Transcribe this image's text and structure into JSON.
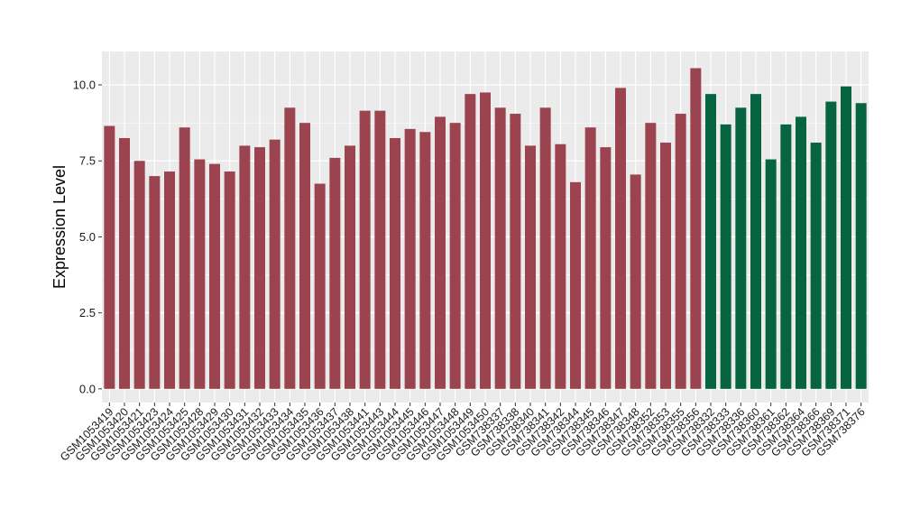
{
  "chart_data": {
    "type": "bar",
    "title": "",
    "xlabel": "",
    "ylabel": "Expression Level",
    "ylim": [
      -0.45,
      11.1
    ],
    "yticks": [
      0.0,
      2.5,
      5.0,
      7.5,
      10.0
    ],
    "ytick_labels": [
      "0.0",
      "2.5",
      "5.0",
      "7.5",
      "10.0"
    ],
    "grid": true,
    "legend": "none",
    "colors": {
      "group1": "#9b4450",
      "group2": "#076441",
      "panel_bg": "#ebebeb",
      "grid": "#ffffff"
    },
    "categories": [
      "GSM1053419",
      "GSM1053420",
      "GSM1053421",
      "GSM1053423",
      "GSM1053424",
      "GSM1053425",
      "GSM1053428",
      "GSM1053429",
      "GSM1053430",
      "GSM1053431",
      "GSM1053432",
      "GSM1053433",
      "GSM1053434",
      "GSM1053435",
      "GSM1053436",
      "GSM1053437",
      "GSM1053438",
      "GSM1053441",
      "GSM1053443",
      "GSM1053444",
      "GSM1053445",
      "GSM1053446",
      "GSM1053447",
      "GSM1053448",
      "GSM1053449",
      "GSM1053450",
      "GSM738337",
      "GSM738338",
      "GSM738340",
      "GSM738341",
      "GSM738342",
      "GSM738344",
      "GSM738345",
      "GSM738346",
      "GSM738347",
      "GSM738348",
      "GSM738352",
      "GSM738353",
      "GSM738355",
      "GSM738356",
      "GSM738332",
      "GSM738333",
      "GSM738336",
      "GSM738360",
      "GSM738361",
      "GSM738362",
      "GSM738364",
      "GSM738366",
      "GSM738369",
      "GSM738371",
      "GSM738376"
    ],
    "values": [
      8.65,
      8.25,
      7.5,
      7.0,
      7.15,
      8.6,
      7.55,
      7.4,
      7.15,
      8.0,
      7.95,
      8.2,
      9.25,
      8.75,
      6.75,
      7.6,
      8.0,
      9.15,
      9.15,
      8.25,
      8.55,
      8.45,
      8.95,
      8.75,
      9.7,
      9.75,
      9.25,
      9.05,
      8.0,
      9.25,
      8.05,
      6.8,
      8.6,
      7.95,
      9.9,
      7.05,
      8.75,
      8.1,
      9.05,
      10.55,
      9.7,
      8.7,
      9.25,
      9.7,
      7.55,
      8.7,
      8.95,
      8.1,
      9.45,
      9.95,
      9.4
    ],
    "groups": [
      1,
      1,
      1,
      1,
      1,
      1,
      1,
      1,
      1,
      1,
      1,
      1,
      1,
      1,
      1,
      1,
      1,
      1,
      1,
      1,
      1,
      1,
      1,
      1,
      1,
      1,
      1,
      1,
      1,
      1,
      1,
      1,
      1,
      1,
      1,
      1,
      1,
      1,
      1,
      1,
      2,
      2,
      2,
      2,
      2,
      2,
      2,
      2,
      2,
      2,
      2
    ]
  }
}
